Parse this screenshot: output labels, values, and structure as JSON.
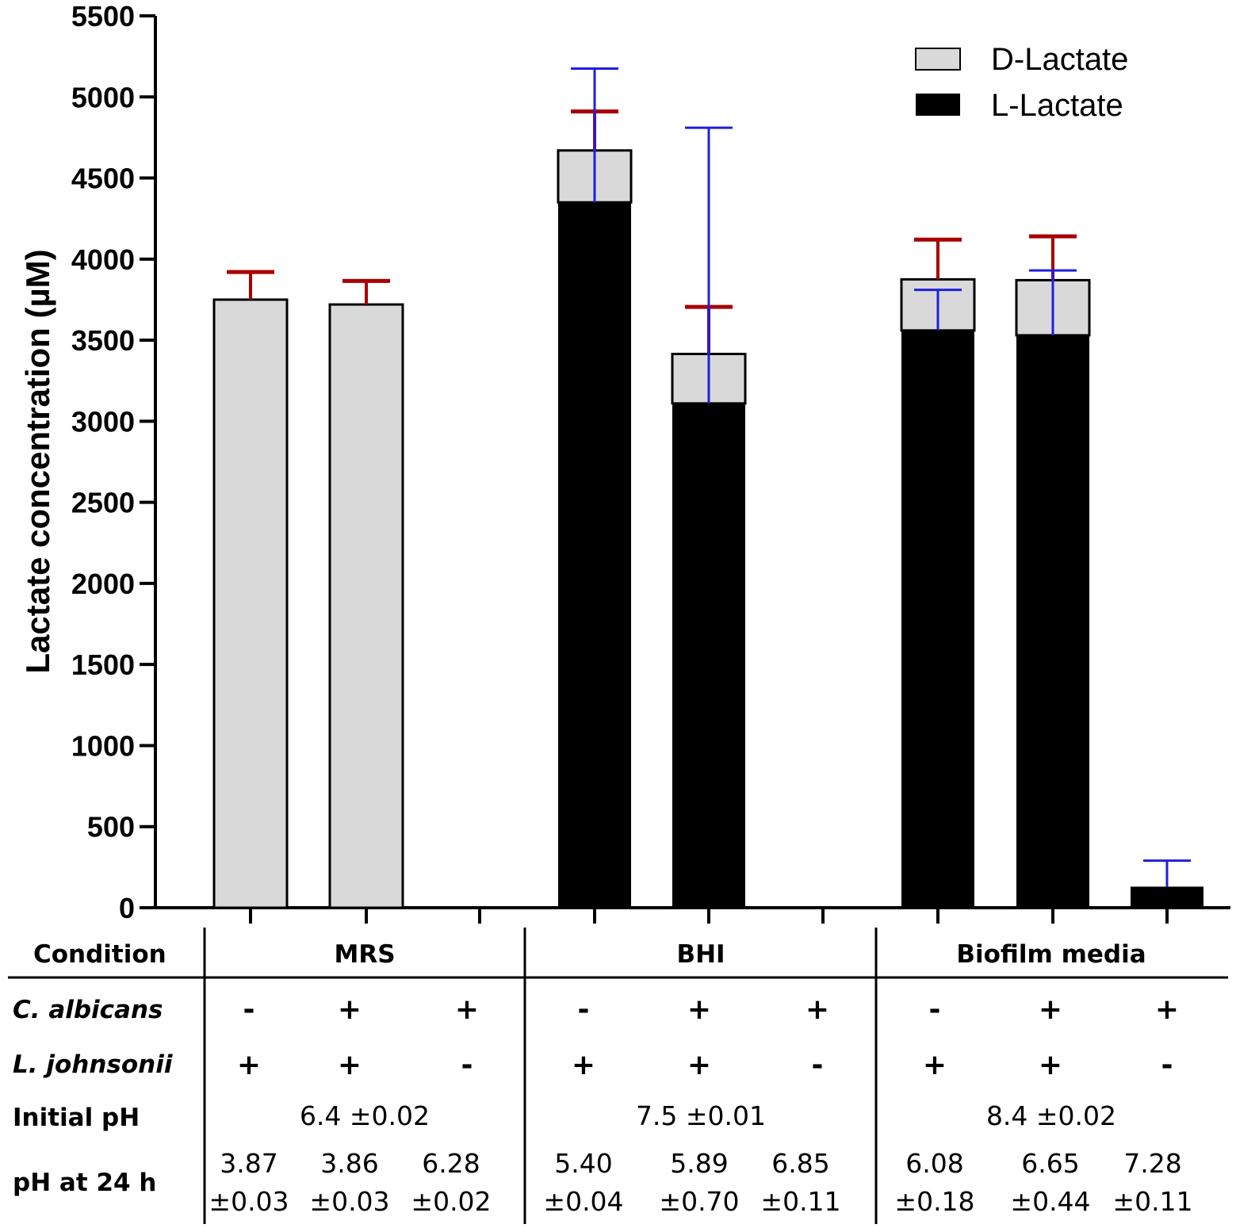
{
  "chart_data": {
    "type": "bar",
    "stacked": true,
    "ylabel": "Lactate concentration (µM)",
    "ylim": [
      0,
      5500
    ],
    "yticks": [
      0,
      500,
      1000,
      1500,
      2000,
      2500,
      3000,
      3500,
      4000,
      4500,
      5000,
      5500
    ],
    "legend": {
      "position": "top-right",
      "entries": [
        {
          "name": "D-Lactate",
          "color": "#d9d9d9"
        },
        {
          "name": "L-Lactate",
          "color": "#000000"
        }
      ]
    },
    "series": [
      {
        "name": "L-Lactate",
        "color": "#000000",
        "error_color": "#1f1fe0",
        "values": [
          0,
          0,
          0,
          4350,
          3110,
          0,
          3560,
          3530,
          130
        ],
        "errors": [
          0,
          0,
          0,
          825,
          1700,
          0,
          250,
          400,
          160
        ]
      },
      {
        "name": "D-Lactate",
        "color": "#d9d9d9",
        "error_color": "#a80000",
        "values": [
          3750,
          3720,
          0,
          320,
          305,
          0,
          315,
          340,
          0
        ],
        "errors": [
          170,
          145,
          0,
          240,
          290,
          0,
          245,
          270,
          0
        ]
      }
    ]
  },
  "table": {
    "headers": {
      "condition": "Condition",
      "c_albicans": "C. albicans",
      "l_johnsonii": "L. johnsonii",
      "initial_ph": "Initial pH",
      "ph_24h": "pH at 24 h"
    },
    "groups": [
      {
        "name": "MRS",
        "initial_ph": "6.4 ±0.02"
      },
      {
        "name": "BHI",
        "initial_ph": "7.5 ±0.01"
      },
      {
        "name": "Biofilm media",
        "initial_ph": "8.4 ±0.02"
      }
    ],
    "c_albicans": [
      "-",
      "+",
      "+",
      "-",
      "+",
      "+",
      "-",
      "+",
      "+"
    ],
    "l_johnsonii": [
      "+",
      "+",
      "-",
      "+",
      "+",
      "-",
      "+",
      "+",
      "-"
    ],
    "ph_24h": [
      {
        "mean": "3.87",
        "sd": "±0.03"
      },
      {
        "mean": "3.86",
        "sd": "±0.03"
      },
      {
        "mean": "6.28",
        "sd": "±0.02"
      },
      {
        "mean": "5.40",
        "sd": "±0.04"
      },
      {
        "mean": "5.89",
        "sd": "±0.70"
      },
      {
        "mean": "6.85",
        "sd": "±0.11"
      },
      {
        "mean": "6.08",
        "sd": "±0.18"
      },
      {
        "mean": "6.65",
        "sd": "±0.44"
      },
      {
        "mean": "7.28",
        "sd": "±0.11"
      }
    ]
  }
}
